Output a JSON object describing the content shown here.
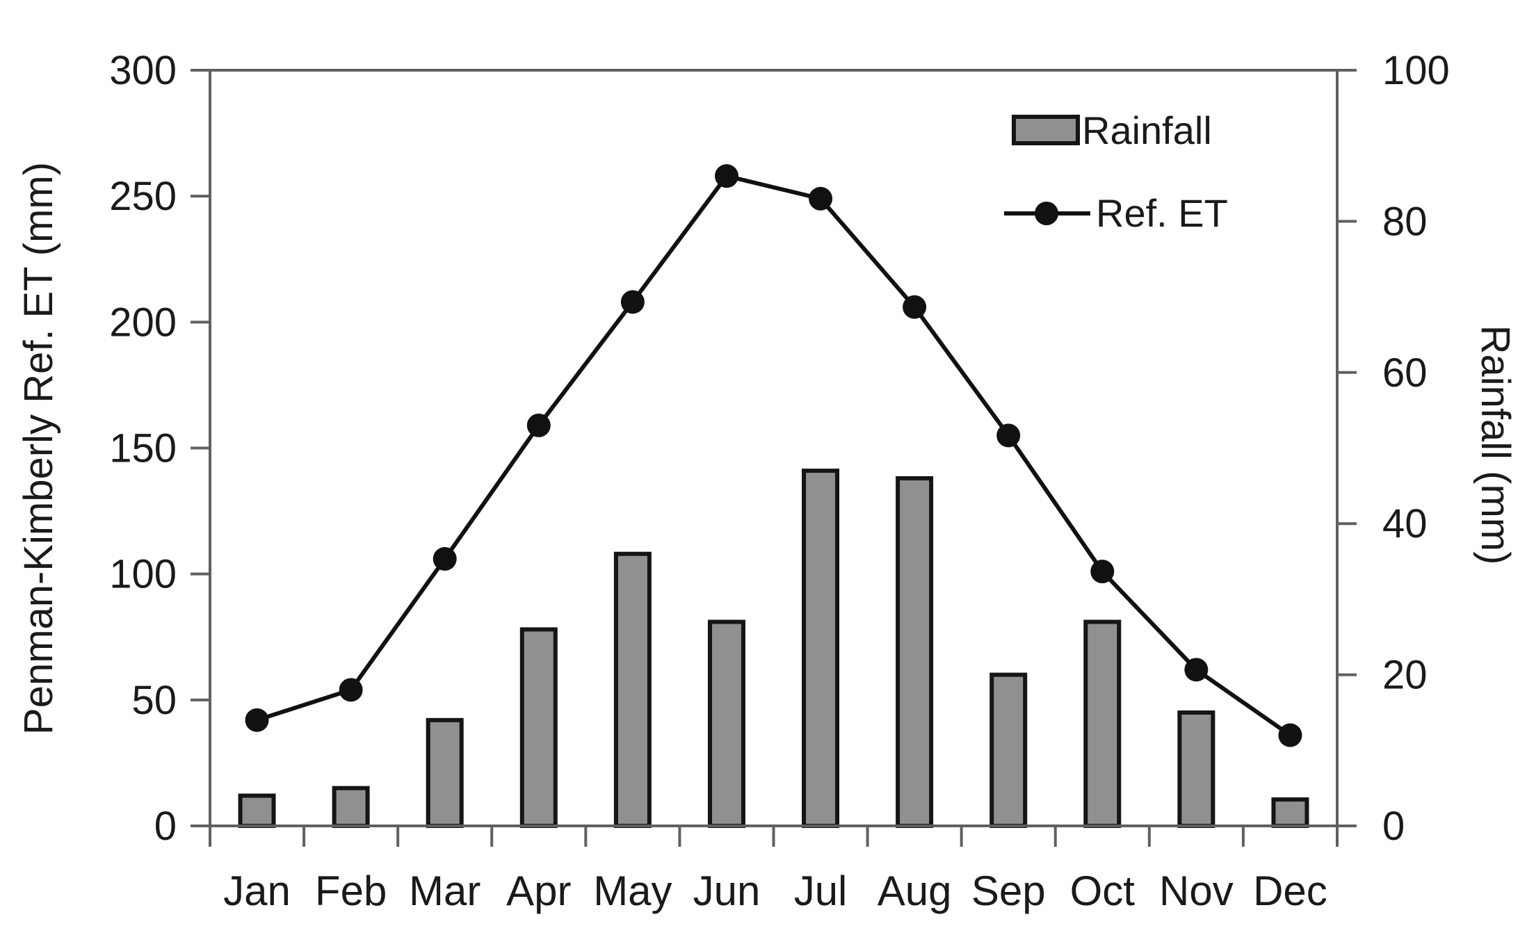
{
  "chart_data": {
    "type": "bar",
    "subtype": "combo-bar-line-dual-axis",
    "categories": [
      "Jan",
      "Feb",
      "Mar",
      "Apr",
      "May",
      "Jun",
      "Jul",
      "Aug",
      "Sep",
      "Oct",
      "Nov",
      "Dec"
    ],
    "series": [
      {
        "name": "Rainfall",
        "type": "bar",
        "axis": "right",
        "values": [
          4,
          5,
          14,
          26,
          36,
          27,
          47,
          46,
          20,
          27,
          15,
          3.5
        ]
      },
      {
        "name": "Ref. ET",
        "type": "line",
        "axis": "left",
        "values": [
          42,
          54,
          106,
          159,
          208,
          258,
          249,
          206,
          155,
          101,
          62,
          36
        ]
      }
    ],
    "left_axis": {
      "label": "Penman-Kimberly Ref. ET (mm)",
      "min": 0,
      "max": 300,
      "ticks": [
        0,
        50,
        100,
        150,
        200,
        250,
        300
      ]
    },
    "right_axis": {
      "label": "Rainfall (mm)",
      "min": 0,
      "max": 100,
      "ticks": [
        0,
        20,
        40,
        60,
        80,
        100
      ]
    },
    "legend": {
      "position": "top-right",
      "items": [
        "Rainfall",
        "Ref. ET"
      ]
    },
    "grid": false,
    "colors": {
      "bar_fill": "#909090",
      "bar_border": "#151515",
      "line": "#111111",
      "axis": "#606060",
      "text": "#1a1a1a",
      "background": "#ffffff"
    }
  }
}
